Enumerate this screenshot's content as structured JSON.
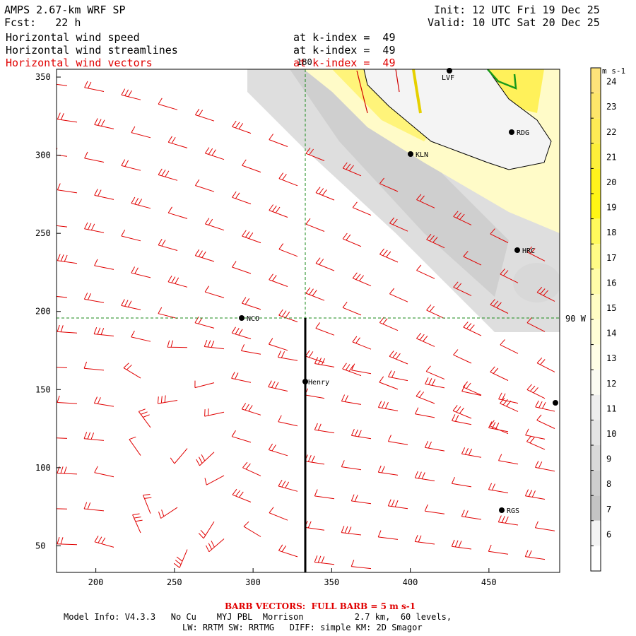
{
  "header": {
    "model": "AMPS 2.67-km WRF SP",
    "forecast": "Fcst:   22 h",
    "init": "Init: 12 UTC Fri 19 Dec 25",
    "valid": "Valid: 10 UTC Sat 20 Dec 25",
    "fields": [
      {
        "name": "Horizontal wind speed",
        "level": "at k-index =  49",
        "color": "#000000"
      },
      {
        "name": "Horizontal wind streamlines",
        "level": "at k-index =  49",
        "color": "#000000"
      },
      {
        "name": "Horizontal wind vectors",
        "level": "at k-index =  49",
        "color": "#e00000"
      }
    ]
  },
  "map": {
    "x_ticks": [
      "200",
      "250",
      "300",
      "350",
      "400",
      "450"
    ],
    "y_ticks": [
      "350",
      "300",
      "250",
      "200",
      "150",
      "100",
      "50"
    ],
    "meridian_label": "180",
    "parallel_label": "90 W",
    "stations": [
      {
        "label": "LVF"
      },
      {
        "label": "RDG"
      },
      {
        "label": "KLN"
      },
      {
        "label": "HRC"
      },
      {
        "label": "NCO"
      },
      {
        "label": "Henry"
      },
      {
        "label": "RGS"
      }
    ]
  },
  "colorbar": {
    "units": "m s-1",
    "levels": [
      "24",
      "23",
      "22",
      "21",
      "20",
      "19",
      "18",
      "17",
      "16",
      "15",
      "14",
      "13",
      "12",
      "11",
      "10",
      "9",
      "8",
      "7",
      "6"
    ],
    "colors": [
      "#fde27a",
      "#fde66a",
      "#fdea55",
      "#fdef3a",
      "#fff21c",
      "#fff514",
      "#fffa5c",
      "#fffb86",
      "#fffca8",
      "#fffdc4",
      "#fffed6",
      "#fffee6",
      "#fbfbf2",
      "#eeeeee",
      "#e4e4e4",
      "#d9d9d9",
      "#cecece",
      "#c4c4c4",
      "#f4f4f4",
      "#ffffff"
    ]
  },
  "footer": {
    "barb": "BARB VECTORS:  FULL BARB = 5 m s-1",
    "model_info": "Model Info: V4.3.3   No Cu    MYJ PBL  Morrison          2.7 km,  60 levels,",
    "physics": "LW: RRTM SW: RRTMG   DIFF: simple KM: 2D Smagor"
  }
}
